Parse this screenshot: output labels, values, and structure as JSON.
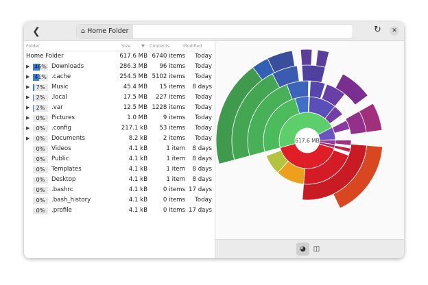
{
  "header": {
    "back_icon": "chevron-left-icon",
    "breadcrumb": "Home Folder",
    "home_icon": "home-icon",
    "reload_icon": "reload-icon",
    "close_icon": "close-icon"
  },
  "columns": {
    "folder": "Folder",
    "size": "Size",
    "contents": "Contents",
    "modified": "Modified"
  },
  "root": {
    "name": "Home Folder",
    "size": "617.6 MB",
    "contents": "6740 items",
    "modified": "Today"
  },
  "rows": [
    {
      "expand": true,
      "pct": "46%",
      "fill": 46,
      "name": "Downloads",
      "size": "286.3 MB",
      "contents": "96 items",
      "modified": "Today"
    },
    {
      "expand": true,
      "pct": "41%",
      "fill": 41,
      "name": ".cache",
      "size": "254.5 MB",
      "contents": "5102 items",
      "modified": "Today"
    },
    {
      "expand": true,
      "pct": "7%",
      "fill": 7,
      "name": "Music",
      "size": "45.4 MB",
      "contents": "15 items",
      "modified": "8 days"
    },
    {
      "expand": true,
      "pct": "2%",
      "fill": 2,
      "name": ".local",
      "size": "17.5 MB",
      "contents": "227 items",
      "modified": "Today"
    },
    {
      "expand": true,
      "pct": "2%",
      "fill": 2,
      "name": ".var",
      "size": "12.5 MB",
      "contents": "1228 items",
      "modified": "Today"
    },
    {
      "expand": true,
      "pct": "0%",
      "fill": 0,
      "name": "Pictures",
      "size": "1.0 MB",
      "contents": "9 items",
      "modified": "Today"
    },
    {
      "expand": true,
      "pct": "0%",
      "fill": 0,
      "name": ".config",
      "size": "217.1 kB",
      "contents": "53 items",
      "modified": "Today"
    },
    {
      "expand": true,
      "pct": "0%",
      "fill": 0,
      "name": "Documents",
      "size": "8.2 kB",
      "contents": "2 items",
      "modified": "Today"
    },
    {
      "expand": false,
      "pct": "0%",
      "fill": 0,
      "name": "Videos",
      "size": "4.1 kB",
      "contents": "1 item",
      "modified": "8 days"
    },
    {
      "expand": false,
      "pct": "0%",
      "fill": 0,
      "name": "Public",
      "size": "4.1 kB",
      "contents": "1 item",
      "modified": "8 days"
    },
    {
      "expand": false,
      "pct": "0%",
      "fill": 0,
      "name": "Templates",
      "size": "4.1 kB",
      "contents": "1 item",
      "modified": "8 days"
    },
    {
      "expand": false,
      "pct": "0%",
      "fill": 0,
      "name": "Desktop",
      "size": "4.1 kB",
      "contents": "1 item",
      "modified": "8 days"
    },
    {
      "expand": false,
      "pct": "0%",
      "fill": 0,
      "name": ".bashrc",
      "size": "4.1 kB",
      "contents": "0 items",
      "modified": "17 days"
    },
    {
      "expand": false,
      "pct": "0%",
      "fill": 0,
      "name": ".bash_history",
      "size": "4.1 kB",
      "contents": "0 items",
      "modified": "Today"
    },
    {
      "expand": false,
      "pct": "0%",
      "fill": 0,
      "name": ".profile",
      "size": "4.1 kB",
      "contents": "0 items",
      "modified": "17 days"
    }
  ],
  "chart_data": {
    "type": "sunburst",
    "center_label": "617.6 MB",
    "rings": [
      [
        [
          0,
          46.4,
          "#5ccf6a"
        ],
        [
          46.4,
          53.8,
          "#6a55c0"
        ],
        [
          53.8,
          56.6,
          "#963a9c"
        ],
        [
          56.6,
          58.6,
          "#a8306a"
        ],
        [
          58.8,
          100,
          "#e01e28"
        ]
      ],
      [
        [
          0,
          24.7,
          "#4cbb5c"
        ],
        [
          24.7,
          29.7,
          "#3f6fc9"
        ],
        [
          30,
          40,
          "#5a4fb8"
        ],
        [
          40,
          44,
          "#7440a8"
        ],
        [
          46.6,
          50,
          "#8a3a9e"
        ],
        [
          54,
          56,
          "#a0307c"
        ],
        [
          57,
          58.5,
          "#b8264a"
        ],
        [
          59.7,
          80.5,
          "#d41c26"
        ],
        [
          80.5,
          91,
          "#eba11b"
        ],
        [
          91,
          98.4,
          "#b5c43e"
        ]
      ],
      [
        [
          0,
          23.6,
          "#48b058"
        ],
        [
          23.6,
          29.5,
          "#3d64bc"
        ],
        [
          30,
          34,
          "#5446ad"
        ],
        [
          34.5,
          40,
          "#6a3fa5"
        ],
        [
          46,
          52,
          "#93308c"
        ],
        [
          55.5,
          80.5,
          "#c81b24"
        ]
      ],
      [
        [
          0,
          21.5,
          "#44a553"
        ],
        [
          21.5,
          27,
          "#3a5bb0"
        ],
        [
          28,
          33,
          "#4f40a0"
        ],
        [
          37,
          44,
          "#7a2e8f"
        ],
        [
          46,
          52,
          "#a0307c"
        ],
        [
          55.5,
          72,
          "#d8471f"
        ]
      ],
      [
        [
          0,
          19,
          "#3f9a4d"
        ],
        [
          19,
          22,
          "#3360b5"
        ],
        [
          22,
          26.5,
          "#3a4e9e"
        ],
        [
          28,
          30,
          "#5a3e9a"
        ],
        [
          31,
          33,
          "#5a3e9a"
        ]
      ]
    ],
    "view_buttons": [
      "chart-view-icon",
      "treemap-view-icon"
    ]
  }
}
